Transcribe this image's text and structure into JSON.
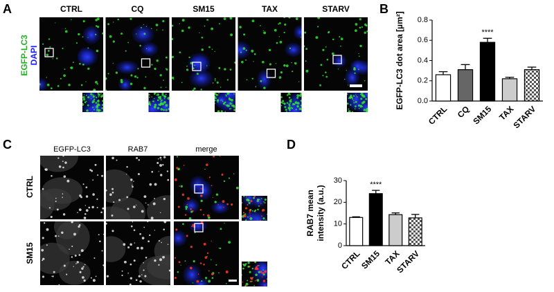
{
  "panel_labels": [
    "A",
    "B",
    "C",
    "D"
  ],
  "panel_a": {
    "channel_labels": [
      "EGFP-LC3",
      "DAPI"
    ],
    "conditions": [
      "CTRL",
      "CQ",
      "SM15",
      "TAX",
      "STARV"
    ]
  },
  "panel_c": {
    "columns": [
      "EGFP-LC3",
      "RAB7",
      "merge"
    ],
    "rows": [
      "CTRL",
      "SM15"
    ]
  },
  "chart_data": [
    {
      "type": "bar",
      "y_label": "EGFP-LC3 dot area [µm²]",
      "categories": [
        "CTRL",
        "CQ",
        "SM15",
        "TAX",
        "STARV"
      ],
      "values": [
        0.26,
        0.31,
        0.58,
        0.22,
        0.31
      ],
      "errors": [
        0.03,
        0.05,
        0.04,
        0.015,
        0.025
      ],
      "colors": [
        "#ffffff",
        "#666666",
        "#000000",
        "#cccccc",
        "#ffffff"
      ],
      "patterns": [
        "none",
        "none",
        "none",
        "none",
        "checker"
      ],
      "ylim": [
        0,
        0.8
      ],
      "yticks": [
        {
          "value": 0,
          "label": "0.0"
        },
        0.2,
        0.4,
        0.6,
        0.8
      ],
      "annotations": [
        {
          "text": "****",
          "category": "SM15"
        }
      ]
    },
    {
      "type": "bar",
      "y_label": [
        "RAB7 mean",
        "intensity (a.u.)"
      ],
      "categories": [
        "CTRL",
        "SM15",
        "TAX",
        "STARV"
      ],
      "values": [
        13,
        24,
        14.3,
        12.8
      ],
      "errors": [
        0.3,
        1.5,
        0.8,
        1.6
      ],
      "colors": [
        "#ffffff",
        "#000000",
        "#cccccc",
        "#ffffff"
      ],
      "patterns": [
        "none",
        "none",
        "none",
        "checker"
      ],
      "ylim": [
        0,
        30
      ],
      "yticks": [
        0,
        10,
        20,
        30
      ],
      "annotations": [
        {
          "text": "****",
          "category": "SM15"
        }
      ]
    }
  ]
}
